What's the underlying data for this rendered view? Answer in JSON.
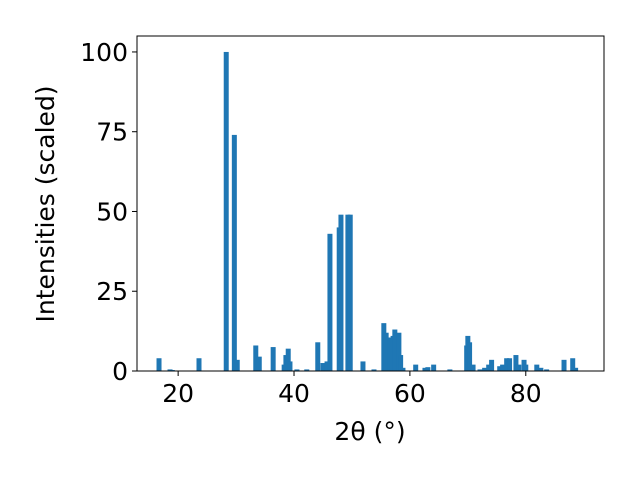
{
  "chart_data": {
    "type": "bar",
    "x": [
      16.7,
      18.6,
      19.0,
      23.6,
      28.3,
      29.7,
      30.2,
      33.4,
      34.0,
      36.4,
      38.3,
      38.6,
      39.0,
      39.3,
      40.5,
      42.2,
      44.1,
      45.0,
      45.7,
      46.2,
      47.8,
      48.1,
      49.3,
      49.7,
      51.9,
      53.8,
      55.5,
      55.9,
      56.6,
      57.1,
      57.4,
      58.1,
      58.4,
      58.8,
      61.0,
      62.6,
      63.1,
      64.1,
      66.9,
      69.8,
      70.0,
      70.3,
      70.9,
      72.1,
      72.9,
      73.6,
      74.1,
      75.5,
      76.0,
      76.7,
      77.2,
      78.3,
      78.8,
      79.7,
      80.0,
      81.9,
      82.6,
      83.6,
      86.6,
      88.1,
      88.6
    ],
    "values": [
      4,
      0.5,
      0.3,
      4,
      100,
      74,
      3.5,
      8,
      4.5,
      7.5,
      2,
      5,
      7,
      3,
      0.5,
      0.5,
      9,
      2.5,
      3,
      43,
      45,
      49,
      49,
      49,
      3,
      0.5,
      15,
      12,
      10.5,
      11,
      13,
      12,
      5,
      1,
      2,
      1,
      1.2,
      2,
      0.5,
      8,
      11,
      9,
      2,
      0.5,
      1,
      2,
      3.5,
      1.5,
      2,
      4,
      4,
      5,
      2,
      3.5,
      2,
      2,
      1,
      0.5,
      3.5,
      4,
      1
    ],
    "color": "#1f77b4",
    "xlabel": "2θ (°)",
    "ylabel": "Intensities (scaled)",
    "xlim": [
      12.9,
      93.5
    ],
    "xticks": [
      20,
      40,
      60,
      80
    ],
    "ylim": [
      0,
      105
    ],
    "yticks": [
      0,
      25,
      50,
      75,
      100
    ]
  }
}
